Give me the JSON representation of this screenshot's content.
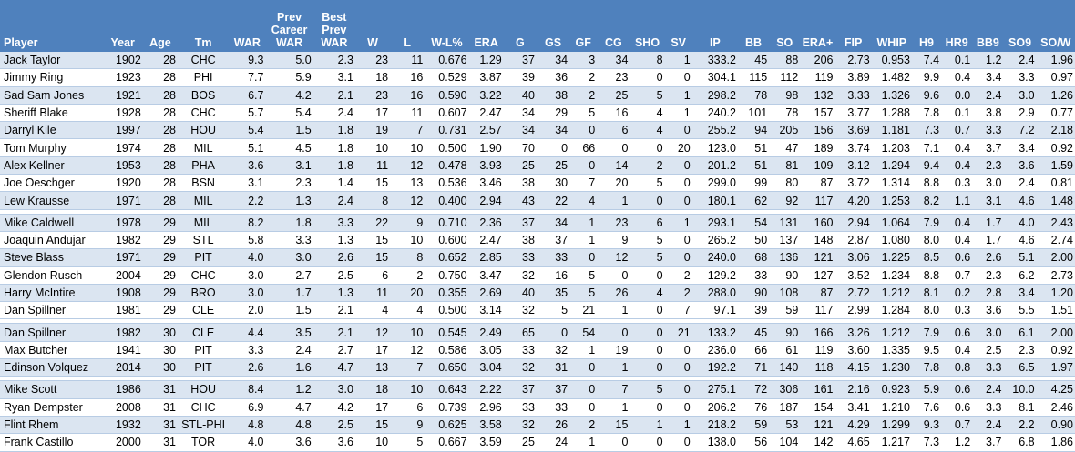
{
  "headers": [
    "Player",
    "Year",
    "Age",
    "Tm",
    "WAR",
    "Prev Career WAR",
    "Best Prev WAR",
    "W",
    "L",
    "W-L%",
    "ERA",
    "G",
    "GS",
    "GF",
    "CG",
    "SHO",
    "SV",
    "IP",
    "BB",
    "SO",
    "ERA+",
    "FIP",
    "WHIP",
    "H9",
    "HR9",
    "BB9",
    "SO9",
    "SO/W"
  ],
  "header_lines": {
    "col5": [
      "Prev",
      "Career",
      "WAR"
    ],
    "col6": [
      "Best",
      "Prev",
      "WAR"
    ]
  },
  "groups": [
    [
      [
        "Jack Taylor",
        "1902",
        "28",
        "CHC",
        "9.3",
        "5.0",
        "2.3",
        "23",
        "11",
        "0.676",
        "1.29",
        "37",
        "34",
        "3",
        "34",
        "8",
        "1",
        "333.2",
        "45",
        "88",
        "206",
        "2.73",
        "0.953",
        "7.4",
        "0.1",
        "1.2",
        "2.4",
        "1.96"
      ],
      [
        "Jimmy Ring",
        "1923",
        "28",
        "PHI",
        "7.7",
        "5.9",
        "3.1",
        "18",
        "16",
        "0.529",
        "3.87",
        "39",
        "36",
        "2",
        "23",
        "0",
        "0",
        "304.1",
        "115",
        "112",
        "119",
        "3.89",
        "1.482",
        "9.9",
        "0.4",
        "3.4",
        "3.3",
        "0.97"
      ],
      [
        "Sad Sam Jones",
        "1921",
        "28",
        "BOS",
        "6.7",
        "4.2",
        "2.1",
        "23",
        "16",
        "0.590",
        "3.22",
        "40",
        "38",
        "2",
        "25",
        "5",
        "1",
        "298.2",
        "78",
        "98",
        "132",
        "3.33",
        "1.326",
        "9.6",
        "0.0",
        "2.4",
        "3.0",
        "1.26"
      ],
      [
        "Sheriff Blake",
        "1928",
        "28",
        "CHC",
        "5.7",
        "5.4",
        "2.4",
        "17",
        "11",
        "0.607",
        "2.47",
        "34",
        "29",
        "5",
        "16",
        "4",
        "1",
        "240.2",
        "101",
        "78",
        "157",
        "3.77",
        "1.288",
        "7.8",
        "0.1",
        "3.8",
        "2.9",
        "0.77"
      ],
      [
        "Darryl Kile",
        "1997",
        "28",
        "HOU",
        "5.4",
        "1.5",
        "1.8",
        "19",
        "7",
        "0.731",
        "2.57",
        "34",
        "34",
        "0",
        "6",
        "4",
        "0",
        "255.2",
        "94",
        "205",
        "156",
        "3.69",
        "1.181",
        "7.3",
        "0.7",
        "3.3",
        "7.2",
        "2.18"
      ],
      [
        "Tom Murphy",
        "1974",
        "28",
        "MIL",
        "5.1",
        "4.5",
        "1.8",
        "10",
        "10",
        "0.500",
        "1.90",
        "70",
        "0",
        "66",
        "0",
        "0",
        "20",
        "123.0",
        "51",
        "47",
        "189",
        "3.74",
        "1.203",
        "7.1",
        "0.4",
        "3.7",
        "3.4",
        "0.92"
      ],
      [
        "Alex Kellner",
        "1953",
        "28",
        "PHA",
        "3.6",
        "3.1",
        "1.8",
        "11",
        "12",
        "0.478",
        "3.93",
        "25",
        "25",
        "0",
        "14",
        "2",
        "0",
        "201.2",
        "51",
        "81",
        "109",
        "3.12",
        "1.294",
        "9.4",
        "0.4",
        "2.3",
        "3.6",
        "1.59"
      ],
      [
        "Joe Oeschger",
        "1920",
        "28",
        "BSN",
        "3.1",
        "2.3",
        "1.4",
        "15",
        "13",
        "0.536",
        "3.46",
        "38",
        "30",
        "7",
        "20",
        "5",
        "0",
        "299.0",
        "99",
        "80",
        "87",
        "3.72",
        "1.314",
        "8.8",
        "0.3",
        "3.0",
        "2.4",
        "0.81"
      ],
      [
        "Lew Krausse",
        "1971",
        "28",
        "MIL",
        "2.2",
        "1.3",
        "2.4",
        "8",
        "12",
        "0.400",
        "2.94",
        "43",
        "22",
        "4",
        "1",
        "0",
        "0",
        "180.1",
        "62",
        "92",
        "117",
        "4.20",
        "1.253",
        "8.2",
        "1.1",
        "3.1",
        "4.6",
        "1.48"
      ]
    ],
    [
      [
        "Mike Caldwell",
        "1978",
        "29",
        "MIL",
        "8.2",
        "1.8",
        "3.3",
        "22",
        "9",
        "0.710",
        "2.36",
        "37",
        "34",
        "1",
        "23",
        "6",
        "1",
        "293.1",
        "54",
        "131",
        "160",
        "2.94",
        "1.064",
        "7.9",
        "0.4",
        "1.7",
        "4.0",
        "2.43"
      ],
      [
        "Joaquin Andujar",
        "1982",
        "29",
        "STL",
        "5.8",
        "3.3",
        "1.3",
        "15",
        "10",
        "0.600",
        "2.47",
        "38",
        "37",
        "1",
        "9",
        "5",
        "0",
        "265.2",
        "50",
        "137",
        "148",
        "2.87",
        "1.080",
        "8.0",
        "0.4",
        "1.7",
        "4.6",
        "2.74"
      ],
      [
        "Steve Blass",
        "1971",
        "29",
        "PIT",
        "4.0",
        "3.0",
        "2.6",
        "15",
        "8",
        "0.652",
        "2.85",
        "33",
        "33",
        "0",
        "12",
        "5",
        "0",
        "240.0",
        "68",
        "136",
        "121",
        "3.06",
        "1.225",
        "8.5",
        "0.6",
        "2.6",
        "5.1",
        "2.00"
      ],
      [
        "Glendon Rusch",
        "2004",
        "29",
        "CHC",
        "3.0",
        "2.7",
        "2.5",
        "6",
        "2",
        "0.750",
        "3.47",
        "32",
        "16",
        "5",
        "0",
        "0",
        "2",
        "129.2",
        "33",
        "90",
        "127",
        "3.52",
        "1.234",
        "8.8",
        "0.7",
        "2.3",
        "6.2",
        "2.73"
      ],
      [
        "Harry McIntire",
        "1908",
        "29",
        "BRO",
        "3.0",
        "1.7",
        "1.3",
        "11",
        "20",
        "0.355",
        "2.69",
        "40",
        "35",
        "5",
        "26",
        "4",
        "2",
        "288.0",
        "90",
        "108",
        "87",
        "2.72",
        "1.212",
        "8.1",
        "0.2",
        "2.8",
        "3.4",
        "1.20"
      ],
      [
        "Dan Spillner",
        "1981",
        "29",
        "CLE",
        "2.0",
        "1.5",
        "2.1",
        "4",
        "4",
        "0.500",
        "3.14",
        "32",
        "5",
        "21",
        "1",
        "0",
        "7",
        "97.1",
        "39",
        "59",
        "117",
        "2.99",
        "1.284",
        "8.0",
        "0.3",
        "3.6",
        "5.5",
        "1.51"
      ]
    ],
    [
      [
        "Dan Spillner",
        "1982",
        "30",
        "CLE",
        "4.4",
        "3.5",
        "2.1",
        "12",
        "10",
        "0.545",
        "2.49",
        "65",
        "0",
        "54",
        "0",
        "0",
        "21",
        "133.2",
        "45",
        "90",
        "166",
        "3.26",
        "1.212",
        "7.9",
        "0.6",
        "3.0",
        "6.1",
        "2.00"
      ],
      [
        "Max Butcher",
        "1941",
        "30",
        "PIT",
        "3.3",
        "2.4",
        "2.7",
        "17",
        "12",
        "0.586",
        "3.05",
        "33",
        "32",
        "1",
        "19",
        "0",
        "0",
        "236.0",
        "66",
        "61",
        "119",
        "3.60",
        "1.335",
        "9.5",
        "0.4",
        "2.5",
        "2.3",
        "0.92"
      ],
      [
        "Edinson Volquez",
        "2014",
        "30",
        "PIT",
        "2.6",
        "1.6",
        "4.7",
        "13",
        "7",
        "0.650",
        "3.04",
        "32",
        "31",
        "0",
        "1",
        "0",
        "0",
        "192.2",
        "71",
        "140",
        "118",
        "4.15",
        "1.230",
        "7.8",
        "0.8",
        "3.3",
        "6.5",
        "1.97"
      ]
    ],
    [
      [
        "Mike Scott",
        "1986",
        "31",
        "HOU",
        "8.4",
        "1.2",
        "3.0",
        "18",
        "10",
        "0.643",
        "2.22",
        "37",
        "37",
        "0",
        "7",
        "5",
        "0",
        "275.1",
        "72",
        "306",
        "161",
        "2.16",
        "0.923",
        "5.9",
        "0.6",
        "2.4",
        "10.0",
        "4.25"
      ],
      [
        "Ryan Dempster",
        "2008",
        "31",
        "CHC",
        "6.9",
        "4.7",
        "4.2",
        "17",
        "6",
        "0.739",
        "2.96",
        "33",
        "33",
        "0",
        "1",
        "0",
        "0",
        "206.2",
        "76",
        "187",
        "154",
        "3.41",
        "1.210",
        "7.6",
        "0.6",
        "3.3",
        "8.1",
        "2.46"
      ],
      [
        "Flint Rhem",
        "1932",
        "31",
        "STL-PHI",
        "4.8",
        "4.8",
        "2.5",
        "15",
        "9",
        "0.625",
        "3.58",
        "32",
        "26",
        "2",
        "15",
        "1",
        "1",
        "218.2",
        "59",
        "53",
        "121",
        "4.29",
        "1.299",
        "9.3",
        "0.7",
        "2.4",
        "2.2",
        "0.90"
      ],
      [
        "Frank Castillo",
        "2000",
        "31",
        "TOR",
        "4.0",
        "3.6",
        "3.6",
        "10",
        "5",
        "0.667",
        "3.59",
        "25",
        "24",
        "1",
        "0",
        "0",
        "0",
        "138.0",
        "56",
        "104",
        "142",
        "4.65",
        "1.217",
        "7.3",
        "1.2",
        "3.7",
        "6.8",
        "1.86"
      ]
    ]
  ]
}
